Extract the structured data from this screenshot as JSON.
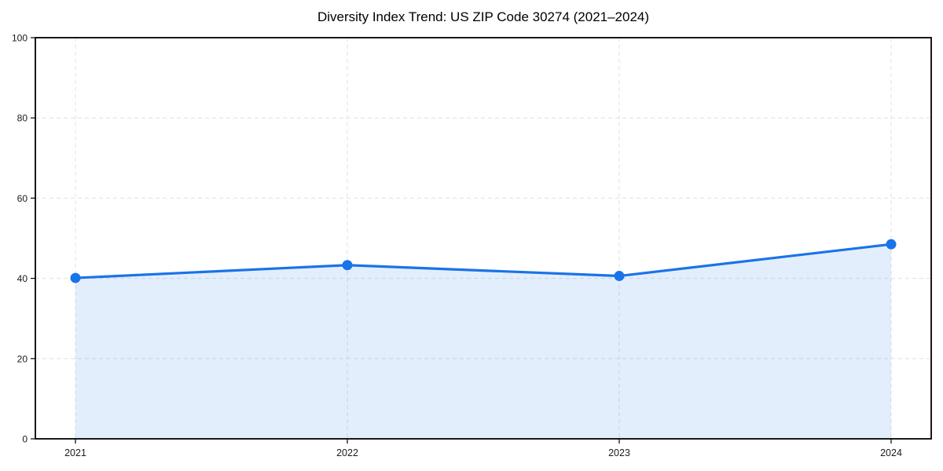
{
  "chart_data": {
    "type": "area",
    "title": "Diversity Index Trend: US ZIP Code 30274 (2021–2024)",
    "categories": [
      "2021",
      "2022",
      "2023",
      "2024"
    ],
    "values": [
      40.1,
      43.3,
      40.6,
      48.5
    ],
    "xlabel": "",
    "ylabel": "",
    "ylim": [
      0,
      100
    ],
    "yticks": [
      0,
      20,
      40,
      60,
      80,
      100
    ],
    "grid": true,
    "grid_style": "dashed",
    "legend": "none",
    "marker": "circle",
    "colors": {
      "line": "#1a73e8",
      "fill": "rgba(26,115,232,0.12)",
      "grid": "#e0e0e0",
      "axis": "#000000",
      "tick_label": "#1a1a1a",
      "title": "#000000",
      "background": "#ffffff"
    }
  }
}
